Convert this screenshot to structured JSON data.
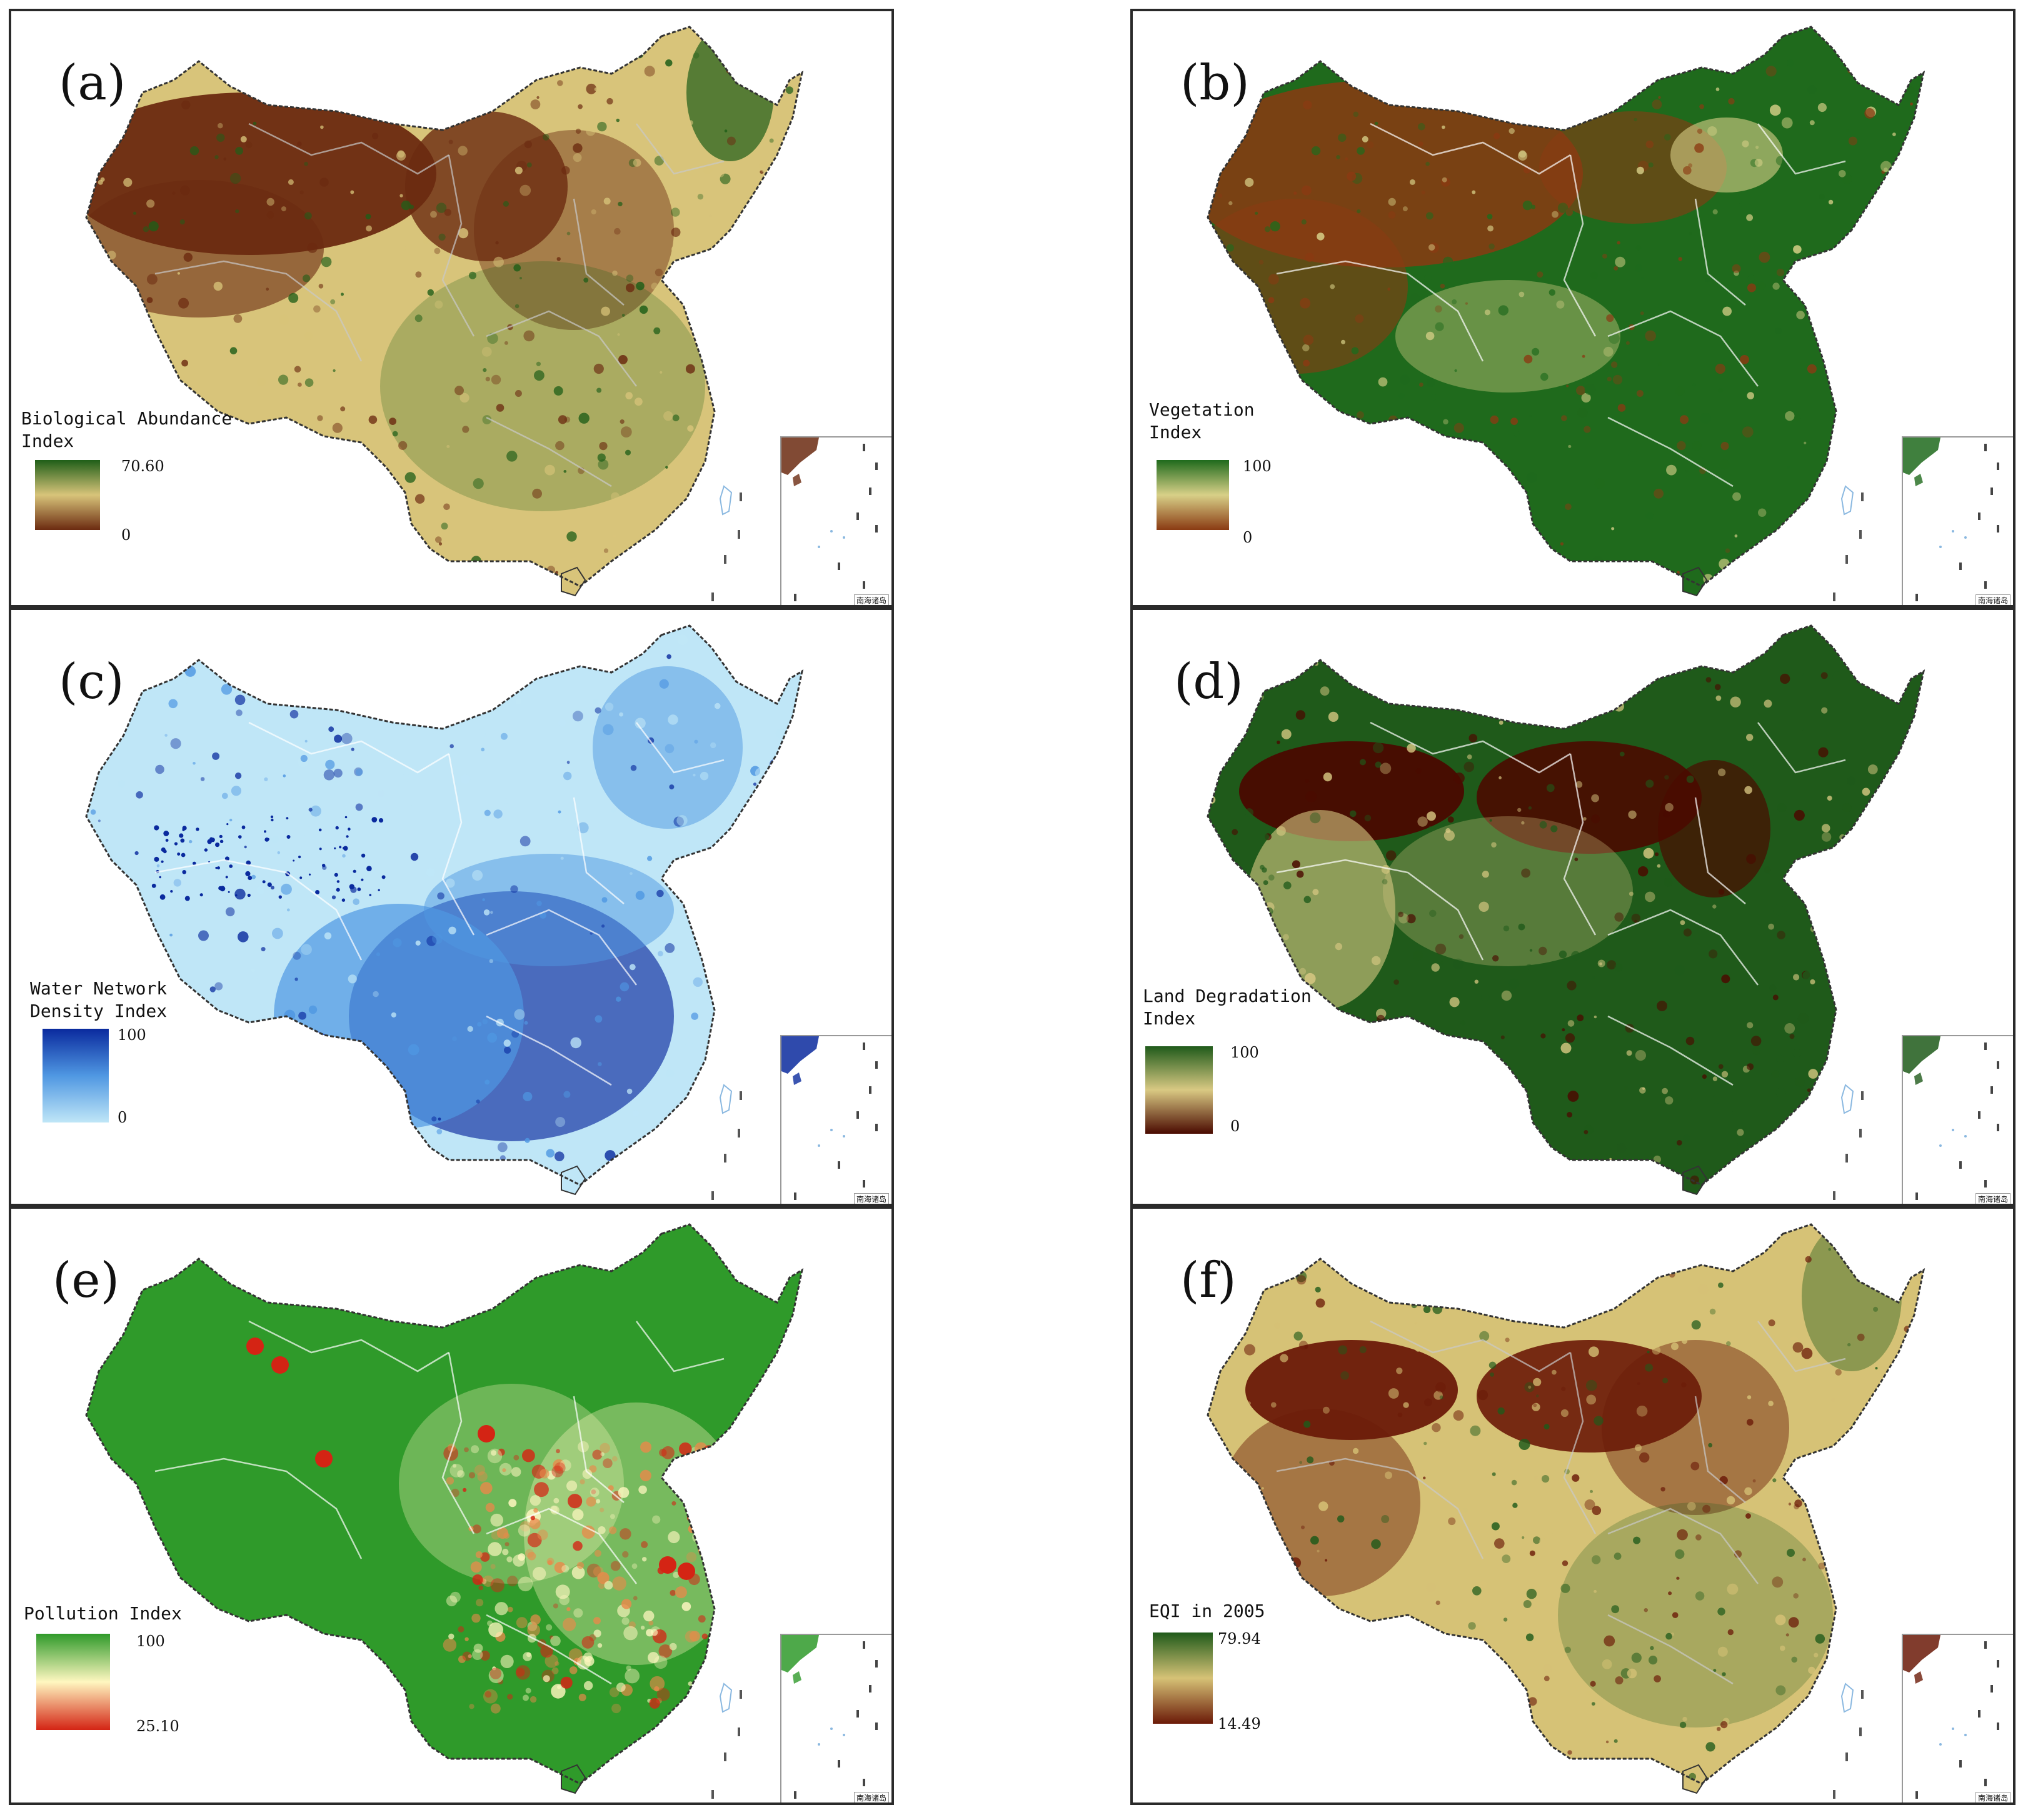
{
  "panels": [
    {
      "id": "a",
      "label": "(a)",
      "legend_title": "Biological Abundance\n Index",
      "legend_max": "70.60",
      "legend_min": "0",
      "colors": {
        "low": "#6b2a10",
        "mid": "#d8c47a",
        "high": "#1f5e18",
        "boundary": "#c9c9c9"
      },
      "inset_caption": "南海诸岛"
    },
    {
      "id": "b",
      "label": "(b)",
      "legend_title": "Vegetation\n Index",
      "legend_max": "100",
      "legend_min": "0",
      "colors": {
        "low": "#8a3a12",
        "mid": "#d8d088",
        "high": "#1f6a1c",
        "boundary": "#ffffff"
      },
      "inset_caption": "南海诸岛"
    },
    {
      "id": "c",
      "label": "(c)",
      "legend_title": "Water Network\nDensity Index",
      "legend_max": "100",
      "legend_min": "0",
      "colors": {
        "low": "#bfe6f7",
        "mid": "#4f97e2",
        "high": "#0a2a9e",
        "boundary": "#ffffff"
      },
      "inset_caption": "南海诸岛"
    },
    {
      "id": "d",
      "label": "(d)",
      "legend_title": "Land Degradation\nIndex",
      "legend_max": "100",
      "legend_min": "0",
      "colors": {
        "low": "#4a0a00",
        "mid": "#d9c983",
        "high": "#1f5a1a",
        "boundary": "#ffffff"
      },
      "inset_caption": "南海诸岛"
    },
    {
      "id": "e",
      "label": "(e)",
      "legend_title": "Pollution Index",
      "legend_max": "100",
      "legend_min": "25.10",
      "colors": {
        "low": "#d42414",
        "mid": "#fff7c0",
        "high": "#2f9a2a",
        "boundary": "#ffffff"
      },
      "inset_caption": "南海诸岛"
    },
    {
      "id": "f",
      "label": "(f)",
      "legend_title": "EQI in 2005",
      "legend_max": "79.94",
      "legend_min": "14.49",
      "colors": {
        "low": "#6b1a08",
        "mid": "#d6c276",
        "high": "#1f5a1a",
        "boundary": "#c9c9c9"
      },
      "inset_caption": "南海诸岛"
    }
  ]
}
